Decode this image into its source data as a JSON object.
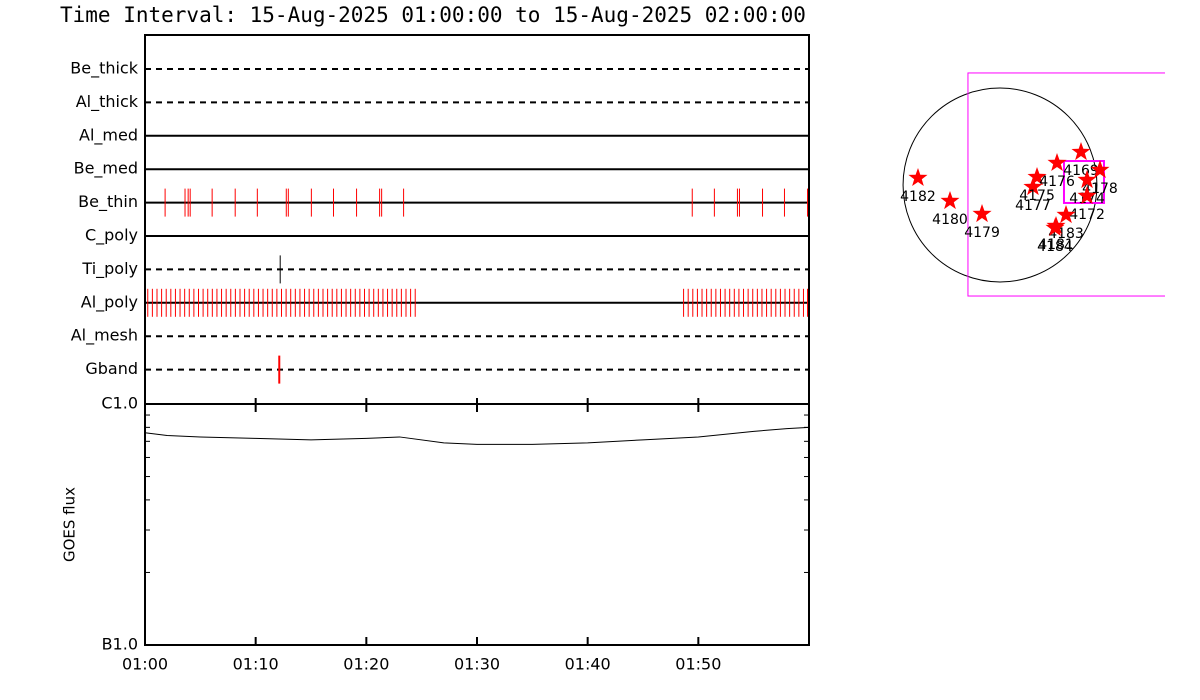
{
  "title": "Time Interval: 15-Aug-2025 01:00:00 to 15-Aug-2025 02:00:00",
  "chart_data": [
    {
      "type": "timeline",
      "xlim": [
        "01:00:00",
        "02:00:00"
      ],
      "rows": [
        {
          "name": "Be_thick",
          "style": "dashed",
          "color": "#ff0000",
          "times": []
        },
        {
          "name": "Al_thick",
          "style": "dashed",
          "color": "#ff0000",
          "times": []
        },
        {
          "name": "Al_med",
          "style": "solid",
          "color": "#ff0000",
          "times": []
        },
        {
          "name": "Be_med",
          "style": "solid",
          "color": "#ff0000",
          "times": []
        },
        {
          "name": "Be_thin",
          "style": "solid",
          "color": "#ff0000",
          "times": [
            "01:01:49",
            "01:03:37",
            "01:03:54",
            "01:04:05",
            "01:06:04",
            "01:08:09",
            "01:10:09",
            "01:12:46",
            "01:12:57",
            "01:15:02",
            "01:17:02",
            "01:19:07",
            "01:21:12",
            "01:21:23",
            "01:23:22",
            "01:49:27",
            "01:51:27",
            "01:53:32",
            "01:53:43",
            "01:55:48",
            "01:57:47",
            "01:59:52"
          ]
        },
        {
          "name": "C_poly",
          "style": "solid",
          "color": "#ff0000",
          "times": []
        },
        {
          "name": "Ti_poly",
          "style": "dashed",
          "color": "#000000",
          "times": [
            "01:12:13"
          ]
        },
        {
          "name": "Al_poly",
          "style": "solid",
          "color": "#ff0000",
          "times": [
            "01:00:15",
            "01:00:40",
            "01:01:05",
            "01:01:30",
            "01:01:55",
            "01:02:20",
            "01:02:45",
            "01:03:10",
            "01:03:35",
            "01:04:00",
            "01:04:25",
            "01:04:50",
            "01:05:15",
            "01:05:40",
            "01:06:05",
            "01:06:30",
            "01:06:55",
            "01:07:20",
            "01:07:45",
            "01:08:10",
            "01:08:35",
            "01:09:00",
            "01:09:25",
            "01:09:50",
            "01:10:15",
            "01:10:40",
            "01:11:05",
            "01:11:30",
            "01:11:55",
            "01:12:20",
            "01:12:45",
            "01:13:10",
            "01:13:35",
            "01:14:00",
            "01:14:25",
            "01:14:50",
            "01:15:15",
            "01:15:40",
            "01:16:05",
            "01:16:30",
            "01:16:55",
            "01:17:20",
            "01:17:45",
            "01:18:10",
            "01:18:35",
            "01:19:00",
            "01:19:25",
            "01:19:50",
            "01:20:15",
            "01:20:40",
            "01:21:05",
            "01:21:30",
            "01:21:55",
            "01:22:20",
            "01:22:45",
            "01:23:10",
            "01:23:35",
            "01:24:00",
            "01:24:25",
            "01:48:40",
            "01:49:05",
            "01:49:30",
            "01:49:55",
            "01:50:20",
            "01:50:45",
            "01:51:10",
            "01:51:35",
            "01:52:00",
            "01:52:25",
            "01:52:50",
            "01:53:15",
            "01:53:40",
            "01:54:05",
            "01:54:30",
            "01:54:55",
            "01:55:20",
            "01:55:45",
            "01:56:10",
            "01:56:35",
            "01:57:00",
            "01:57:25",
            "01:57:50",
            "01:58:15",
            "01:58:40",
            "01:59:05",
            "01:59:30",
            "01:59:52"
          ]
        },
        {
          "name": "Al_mesh",
          "style": "dashed",
          "color": "#ff0000",
          "times": []
        },
        {
          "name": "Gband",
          "style": "dashed",
          "color": "#ff0000",
          "times": [
            "01:12:08"
          ]
        }
      ]
    },
    {
      "type": "line",
      "ylabel": "GOES flux",
      "log": true,
      "color": "#000000",
      "xlim": [
        "01:00:00",
        "02:00:00"
      ],
      "xticks": [
        "01:00",
        "01:10",
        "01:20",
        "01:30",
        "01:40",
        "01:50"
      ],
      "ylim": [
        1e-07,
        1e-06
      ],
      "yticks": [
        {
          "value": 1e-06,
          "label": "C1.0"
        },
        {
          "value": 1e-07,
          "label": "B1.0"
        }
      ],
      "minor_yticks": [
        2e-07,
        3e-07,
        4e-07,
        5e-07,
        6e-07,
        7e-07,
        8e-07,
        9e-07
      ],
      "x": [
        "01:00:00",
        "01:02:00",
        "01:05:00",
        "01:10:00",
        "01:15:00",
        "01:20:00",
        "01:23:00",
        "01:27:00",
        "01:30:00",
        "01:35:00",
        "01:40:00",
        "01:45:00",
        "01:50:00",
        "01:55:00",
        "01:58:00",
        "02:00:00"
      ],
      "values": [
        7.6e-07,
        7.4e-07,
        7.3e-07,
        7.2e-07,
        7.1e-07,
        7.2e-07,
        7.3e-07,
        6.9e-07,
        6.8e-07,
        6.8e-07,
        6.9e-07,
        7.1e-07,
        7.3e-07,
        7.7e-07,
        7.9e-07,
        8e-07
      ]
    },
    {
      "type": "map",
      "xlim": [
        -1176,
        1617
      ],
      "ylim": [
        -1225,
        1225
      ],
      "disk_radius": 950,
      "box_color": "#ff00ff",
      "star_color": "#ff0000",
      "boxes": [
        [
          -314,
          -1088,
          2000,
          1098
        ],
        [
          627,
          -176,
          1019,
          235
        ]
      ],
      "labels": [
        "4182",
        "4180",
        "4179",
        "4177",
        "4175",
        "4176",
        "4169",
        "4178",
        "4174",
        "4172",
        "4183",
        "4181",
        "4184"
      ],
      "x": [
        -804,
        -490,
        -176,
        323,
        363,
        559,
        794,
        980,
        853,
        853,
        647,
        549,
        539
      ],
      "y": [
        69,
        -157,
        -284,
        -20,
        78,
        216,
        323,
        147,
        49,
        -108,
        -294,
        -402,
        -421
      ]
    }
  ]
}
